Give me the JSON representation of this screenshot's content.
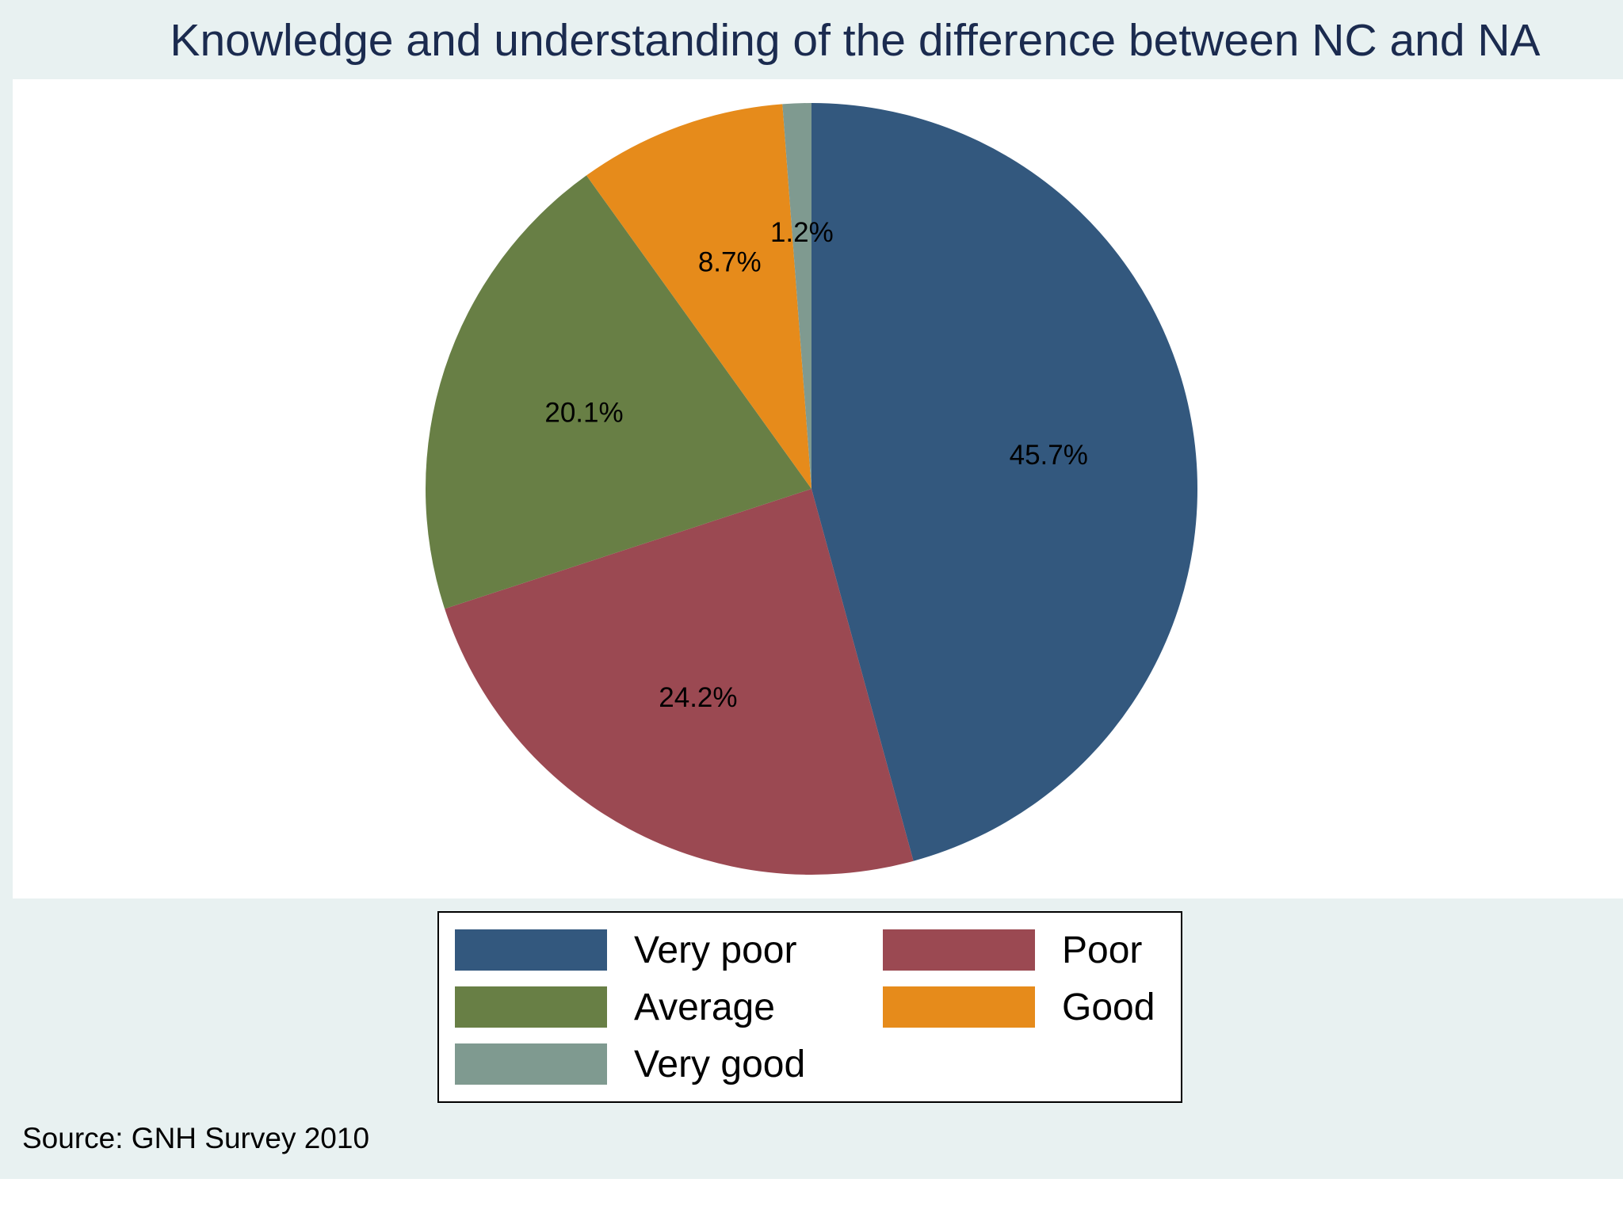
{
  "chart_data": {
    "type": "pie",
    "title": "Knowledge and understanding of the difference between NC and NA",
    "note": "Source: GNH Survey 2010",
    "legend_position": "bottom",
    "start_angle": "12 o'clock",
    "direction": "clockwise",
    "slices": [
      {
        "label": "Very poor",
        "value": 45.7,
        "value_label": "45.7%",
        "color": "#33587e"
      },
      {
        "label": "Poor",
        "value": 24.2,
        "value_label": "24.2%",
        "color": "#9b4952"
      },
      {
        "label": "Average",
        "value": 20.1,
        "value_label": "20.1%",
        "color": "#687f45"
      },
      {
        "label": "Good",
        "value": 8.7,
        "value_label": "8.7%",
        "color": "#e68b1b"
      },
      {
        "label": "Very good",
        "value": 1.2,
        "value_label": "1.2%",
        "color": "#7f9a90"
      }
    ]
  },
  "colors": {
    "background": "#e8f1f1",
    "plot_background": "#ffffff",
    "title": "#1b2b4f"
  }
}
